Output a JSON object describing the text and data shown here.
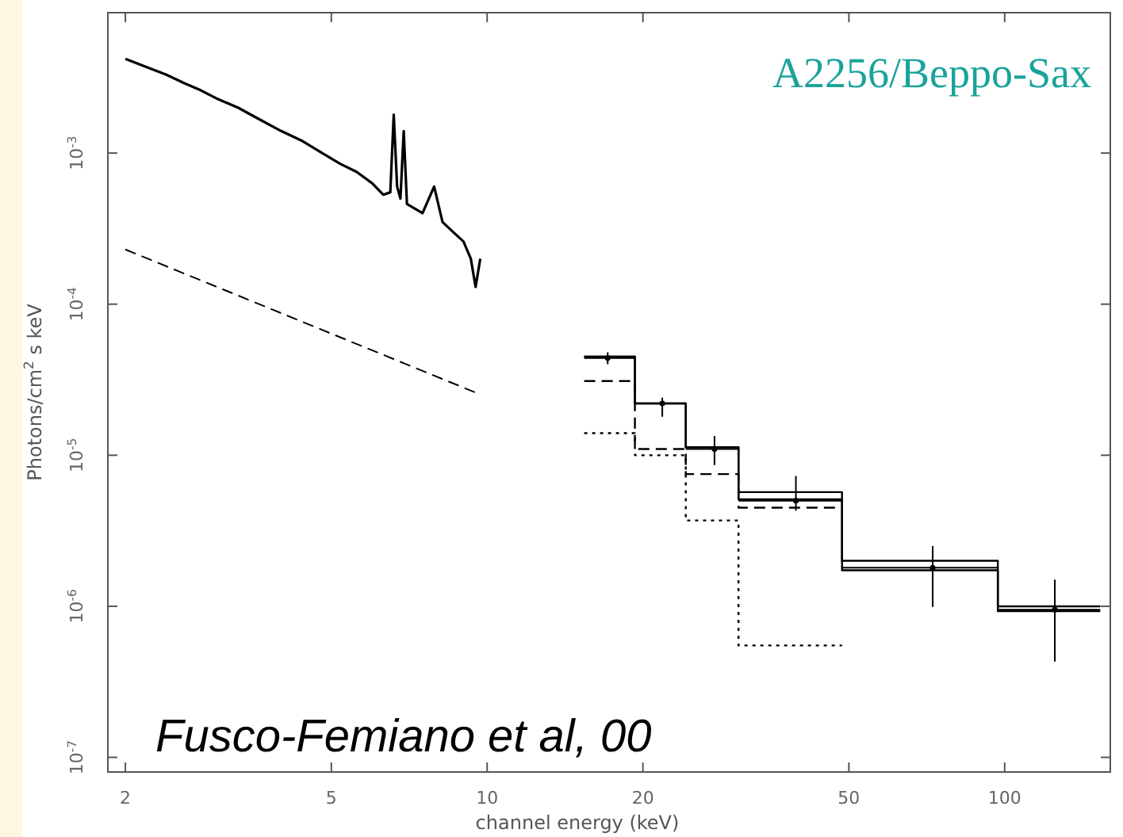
{
  "chart_data": {
    "type": "line",
    "xlabel": "channel energy (keV)",
    "ylabel": "Photons/cm$^{2}$ s keV",
    "annotations": [
      "A2256/Beppo-Sax",
      "Fusco-Femiano et al, 00"
    ],
    "log": "xy",
    "xlim": [
      1.85,
      160
    ],
    "ylim": [
      8e-08,
      0.0085
    ],
    "xticks": [
      2,
      5,
      10,
      20,
      50,
      100
    ],
    "yticks": [
      {
        "value": 1e-07,
        "label": "10$^{-7}$"
      },
      {
        "value": 1e-06,
        "label": "10$^{-6}$"
      },
      {
        "value": 1e-05,
        "label": "10$^{-5}$"
      },
      {
        "value": 0.0001,
        "label": "10$^{-4}$"
      },
      {
        "value": 0.001,
        "label": "10$^{-3}$"
      }
    ],
    "series": [
      {
        "color": "#000000",
        "line_style": "solid",
        "x": [
          2.0,
          2.2,
          2.4,
          2.6,
          2.8,
          3.0,
          3.3,
          3.6,
          4.0,
          4.4,
          4.8,
          5.2,
          5.6,
          6.0,
          6.3,
          6.5,
          6.6,
          6.7,
          6.8,
          6.9,
          7.0,
          7.5,
          7.9,
          8.2,
          8.6,
          9.0,
          9.3,
          9.5,
          9.7
        ],
        "values": [
          0.0042,
          0.0037,
          0.0033,
          0.0029,
          0.0026,
          0.0023,
          0.002,
          0.0017,
          0.0014,
          0.0012,
          0.001,
          0.00085,
          0.00075,
          0.00063,
          0.00053,
          0.00055,
          0.0018,
          0.0006,
          0.0005,
          0.0014,
          0.00046,
          0.0004,
          0.0006,
          0.00035,
          0.0003,
          0.00026,
          0.0002,
          0.00013,
          0.0002
        ]
      },
      {
        "color": "#000000",
        "line_style": "dashed",
        "x": [
          2.0,
          9.5
        ],
        "values": [
          0.00023,
          2.6e-05
        ]
      },
      {
        "type": "step",
        "color": "#000000",
        "line_style": "solid",
        "x": [
          15.4,
          19.3,
          24.2,
          30.6,
          48.5,
          97,
          153
        ],
        "values": [
          4.5e-05,
          2.2e-05,
          1.13e-05,
          5.7e-06,
          2e-06,
          1e-06,
          1e-06
        ]
      },
      {
        "type": "step",
        "color": "#000000",
        "line_style": "solid",
        "x": [
          15.4,
          19.3,
          24.2,
          30.6,
          48.5,
          97,
          153
        ],
        "values": [
          4.5e-05,
          2.2e-05,
          1.13e-05,
          5.1e-06,
          1.73e-06,
          9.3e-07,
          9.3e-07
        ]
      },
      {
        "type": "step",
        "color": "#000000",
        "line_style": "dashed",
        "x": [
          15.4,
          19.3,
          24.2,
          30.6,
          48.5
        ],
        "values": [
          3.1e-05,
          1.1e-05,
          7.5e-06,
          4.5e-06,
          4.5e-06
        ]
      },
      {
        "type": "step",
        "color": "#000000",
        "line_style": "dotted",
        "x": [
          15.4,
          19.3,
          24.2,
          30.6,
          48.5
        ],
        "values": [
          1.4e-05,
          1e-05,
          3.7e-06,
          5.5e-07,
          5.5e-07
        ]
      },
      {
        "type": "scatter",
        "color": "#000000",
        "marker": "circle",
        "x": [
          17.1,
          21.8,
          27.5,
          39.5,
          72.6,
          125
        ],
        "values": [
          4.4e-05,
          2.2e-05,
          1.1e-05,
          5e-06,
          1.8e-06,
          9.5e-07
        ],
        "errors": [
          [
            4e-05,
            4.8e-05
          ],
          [
            1.8e-05,
            2.4e-05
          ],
          [
            8.6e-06,
            1.34e-05
          ],
          [
            4.3e-06,
            7.3e-06
          ],
          [
            9.9e-07,
            2.5e-06
          ],
          [
            4.3e-07,
            1.5e-06
          ]
        ],
        "xerrors": [
          [
            15.4,
            19.3
          ],
          [
            19.3,
            24.2
          ],
          [
            24.2,
            30.6
          ],
          [
            30.6,
            48.5
          ],
          [
            48.5,
            97
          ],
          [
            97,
            153
          ]
        ]
      }
    ]
  }
}
